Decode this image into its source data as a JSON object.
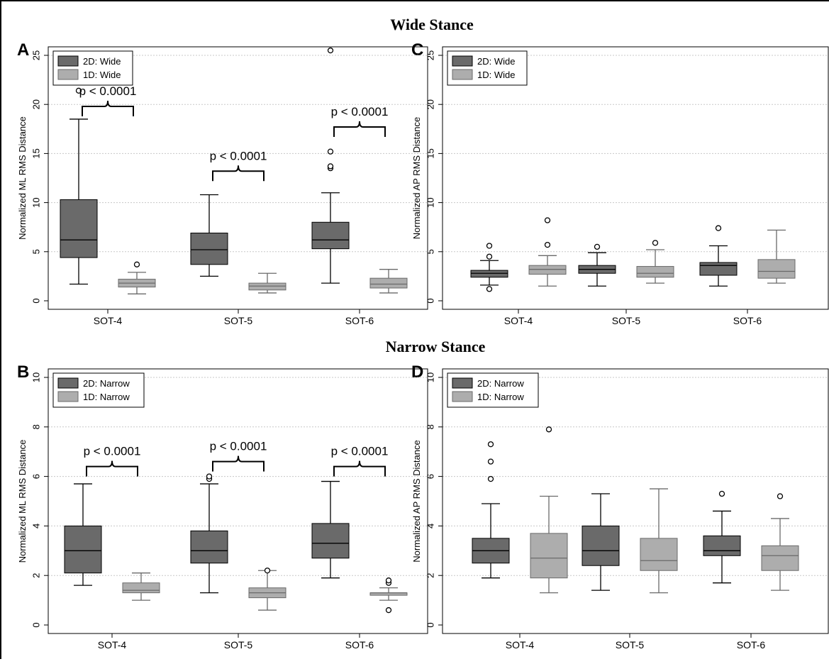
{
  "figure": {
    "section_titles": [
      "Wide Stance",
      "Narrow Stance"
    ]
  },
  "colors": {
    "dark_box": "#6a6a6a",
    "light_box": "#adadad",
    "whisker_dark": "#000000",
    "whisker_light": "#6a6a6a",
    "grid": "#c8c8c8"
  },
  "chart_data": [
    {
      "panel": "A",
      "type": "box",
      "ylabel": "Normalized ML RMS Distance",
      "ylim": [
        0,
        25
      ],
      "yticks": [
        0,
        5,
        10,
        15,
        20,
        25
      ],
      "categories": [
        "SOT-4",
        "SOT-5",
        "SOT-6"
      ],
      "legend": {
        "position": "top-left",
        "entries": [
          "2D: Wide",
          "1D: Wide"
        ]
      },
      "series": [
        {
          "name": "2D: Wide",
          "color": "#6a6a6a",
          "boxes": [
            {
              "whislo": 1.7,
              "q1": 4.4,
              "med": 6.2,
              "q3": 10.3,
              "whishi": 18.5,
              "outliers": [
                21.4
              ]
            },
            {
              "whislo": 2.5,
              "q1": 3.7,
              "med": 5.2,
              "q3": 6.9,
              "whishi": 10.8,
              "outliers": []
            },
            {
              "whislo": 1.8,
              "q1": 5.3,
              "med": 6.2,
              "q3": 8.0,
              "whishi": 11.0,
              "outliers": [
                13.5,
                13.7,
                15.2,
                25.5
              ]
            }
          ]
        },
        {
          "name": "1D: Wide",
          "color": "#adadad",
          "boxes": [
            {
              "whislo": 0.7,
              "q1": 1.4,
              "med": 1.8,
              "q3": 2.2,
              "whishi": 2.9,
              "outliers": [
                3.7
              ]
            },
            {
              "whislo": 0.8,
              "q1": 1.1,
              "med": 1.5,
              "q3": 1.8,
              "whishi": 2.8,
              "outliers": []
            },
            {
              "whislo": 0.8,
              "q1": 1.3,
              "med": 1.7,
              "q3": 2.3,
              "whishi": 3.2,
              "outliers": []
            }
          ]
        }
      ],
      "annotations": [
        {
          "text": "p <  0.0001",
          "category": 0,
          "y": 19.8
        },
        {
          "text": "p <  0.0001",
          "category": 1,
          "y": 13.2
        },
        {
          "text": "p <  0.0001",
          "category": 2,
          "y": 17.7
        }
      ]
    },
    {
      "panel": "C",
      "type": "box",
      "ylabel": "Normalized AP RMS Distance",
      "ylim": [
        0,
        25
      ],
      "yticks": [
        0,
        5,
        10,
        15,
        20,
        25
      ],
      "categories": [
        "SOT-4",
        "SOT-5",
        "SOT-6"
      ],
      "legend": {
        "position": "top-left",
        "entries": [
          "2D: Wide",
          "1D: Wide"
        ]
      },
      "series": [
        {
          "name": "2D: Wide",
          "color": "#6a6a6a",
          "boxes": [
            {
              "whislo": 1.6,
              "q1": 2.4,
              "med": 2.8,
              "q3": 3.1,
              "whishi": 4.1,
              "outliers": [
                1.2,
                4.5,
                5.6
              ]
            },
            {
              "whislo": 1.5,
              "q1": 2.8,
              "med": 3.2,
              "q3": 3.6,
              "whishi": 4.9,
              "outliers": [
                5.5
              ]
            },
            {
              "whislo": 1.5,
              "q1": 2.6,
              "med": 3.6,
              "q3": 3.9,
              "whishi": 5.6,
              "outliers": [
                7.4
              ]
            }
          ]
        },
        {
          "name": "1D: Wide",
          "color": "#adadad",
          "boxes": [
            {
              "whislo": 1.5,
              "q1": 2.7,
              "med": 3.2,
              "q3": 3.6,
              "whishi": 4.6,
              "outliers": [
                5.7,
                8.2
              ]
            },
            {
              "whislo": 1.8,
              "q1": 2.4,
              "med": 2.8,
              "q3": 3.5,
              "whishi": 5.2,
              "outliers": [
                5.9
              ]
            },
            {
              "whislo": 1.8,
              "q1": 2.3,
              "med": 3.0,
              "q3": 4.2,
              "whishi": 7.2,
              "outliers": []
            }
          ]
        }
      ],
      "annotations": []
    },
    {
      "panel": "B",
      "type": "box",
      "ylabel": "Normalized ML RMS Distance",
      "ylim": [
        0,
        10
      ],
      "yticks": [
        0,
        2,
        4,
        6,
        8,
        10
      ],
      "categories": [
        "SOT-4",
        "SOT-5",
        "SOT-6"
      ],
      "legend": {
        "position": "top-left",
        "entries": [
          "2D: Narrow",
          "1D: Narrow"
        ]
      },
      "series": [
        {
          "name": "2D: Narrow",
          "color": "#6a6a6a",
          "boxes": [
            {
              "whislo": 1.6,
              "q1": 2.1,
              "med": 3.0,
              "q3": 4.0,
              "whishi": 5.7,
              "outliers": []
            },
            {
              "whislo": 1.3,
              "q1": 2.5,
              "med": 3.0,
              "q3": 3.8,
              "whishi": 5.7,
              "outliers": [
                5.9,
                6.0
              ]
            },
            {
              "whislo": 1.9,
              "q1": 2.7,
              "med": 3.3,
              "q3": 4.1,
              "whishi": 5.8,
              "outliers": []
            }
          ]
        },
        {
          "name": "1D: Narrow",
          "color": "#adadad",
          "boxes": [
            {
              "whislo": 1.0,
              "q1": 1.3,
              "med": 1.4,
              "q3": 1.7,
              "whishi": 2.1,
              "outliers": []
            },
            {
              "whislo": 0.6,
              "q1": 1.1,
              "med": 1.3,
              "q3": 1.5,
              "whishi": 2.2,
              "outliers": [
                2.2
              ]
            },
            {
              "whislo": 1.0,
              "q1": 1.2,
              "med": 1.3,
              "q3": 1.3,
              "whishi": 1.5,
              "outliers": [
                0.6,
                1.7,
                1.8
              ]
            }
          ]
        }
      ],
      "annotations": [
        {
          "text": "p <  0.0001",
          "category": 0,
          "y": 6.4
        },
        {
          "text": "p <  0.0001",
          "category": 1,
          "y": 6.6
        },
        {
          "text": "p <  0.0001",
          "category": 2,
          "y": 6.4
        }
      ]
    },
    {
      "panel": "D",
      "type": "box",
      "ylabel": "Normalized AP RMS Distance",
      "ylim": [
        0,
        10
      ],
      "yticks": [
        0,
        2,
        4,
        6,
        8,
        10
      ],
      "categories": [
        "SOT-4",
        "SOT-5",
        "SOT-6"
      ],
      "legend": {
        "position": "top-left",
        "entries": [
          "2D: Narrow",
          "1D: Narrow"
        ]
      },
      "series": [
        {
          "name": "2D: Narrow",
          "color": "#6a6a6a",
          "boxes": [
            {
              "whislo": 1.9,
              "q1": 2.5,
              "med": 3.0,
              "q3": 3.5,
              "whishi": 4.9,
              "outliers": [
                5.9,
                6.6,
                7.3
              ]
            },
            {
              "whislo": 1.4,
              "q1": 2.4,
              "med": 3.0,
              "q3": 4.0,
              "whishi": 5.3,
              "outliers": []
            },
            {
              "whislo": 1.7,
              "q1": 2.8,
              "med": 3.0,
              "q3": 3.6,
              "whishi": 4.6,
              "outliers": [
                5.3
              ]
            }
          ]
        },
        {
          "name": "1D: Narrow",
          "color": "#adadad",
          "boxes": [
            {
              "whislo": 1.3,
              "q1": 1.9,
              "med": 2.7,
              "q3": 3.7,
              "whishi": 5.2,
              "outliers": [
                7.9
              ]
            },
            {
              "whislo": 1.3,
              "q1": 2.2,
              "med": 2.6,
              "q3": 3.5,
              "whishi": 5.5,
              "outliers": []
            },
            {
              "whislo": 1.4,
              "q1": 2.2,
              "med": 2.8,
              "q3": 3.2,
              "whishi": 4.3,
              "outliers": [
                5.2
              ]
            }
          ]
        }
      ],
      "annotations": []
    }
  ]
}
